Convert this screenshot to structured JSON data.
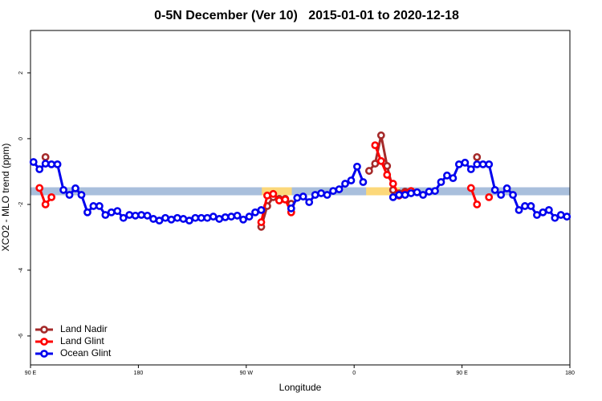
{
  "chart_data": {
    "type": "line",
    "title": "0-5N December (Ver 10)   2015-01-01 to 2020-12-18",
    "xlabel": "Longitude",
    "ylabel": "XCO2 - MLO trend (ppm)",
    "xlim": [
      90,
      540
    ],
    "ylim": [
      -6.88,
      3.29
    ],
    "xticks": [
      {
        "value": 90,
        "label": "90 E"
      },
      {
        "value": 180,
        "label": "180"
      },
      {
        "value": 270,
        "label": "90 W"
      },
      {
        "value": 360,
        "label": "0"
      },
      {
        "value": 450,
        "label": "90 E"
      },
      {
        "value": 540,
        "label": "180"
      }
    ],
    "yticks": [
      -6,
      -4,
      -2,
      0,
      2
    ],
    "legend": "bottomleft",
    "band": {
      "y": -1.6,
      "color": "#a9bfdc",
      "highlight_color": "#fcd87a",
      "highlights": [
        [
          283,
          308
        ],
        [
          370,
          398
        ]
      ]
    },
    "series": [
      {
        "name": "Land Nadir",
        "color": "#a52a2a",
        "x": [
          102.5,
          107.5,
          282.5,
          287.5,
          292.5,
          297.5,
          302.5,
          307.5,
          312.5,
          372.5,
          377.5,
          382.5,
          387.5,
          392.5,
          397.5,
          402.5,
          407.5,
          462.5
        ],
        "values": [
          -0.56,
          null,
          -2.68,
          -2.05,
          -1.78,
          -1.83,
          -1.83,
          -1.98,
          null,
          -0.98,
          -0.76,
          0.1,
          -0.83,
          -1.56,
          -1.66,
          -1.61,
          null,
          -0.56
        ]
      },
      {
        "name": "Land Glint",
        "color": "#ff0000",
        "x": [
          97.5,
          102.5,
          107.5,
          112.5,
          282.5,
          287.5,
          292.5,
          297.5,
          302.5,
          307.5,
          312.5,
          377.5,
          382.5,
          387.5,
          392.5,
          397.5,
          402.5,
          407.5,
          412.5,
          457.5,
          462.5,
          467.5,
          472.5
        ],
        "values": [
          -1.5,
          -2.0,
          -1.78,
          null,
          -2.54,
          -1.73,
          -1.68,
          -1.88,
          -1.85,
          -2.24,
          null,
          -0.2,
          -0.68,
          -1.1,
          -1.37,
          -1.73,
          -1.66,
          -1.59,
          null,
          -1.5,
          -2.0,
          null,
          -1.78
        ]
      },
      {
        "name": "Ocean Glint",
        "color": "#0000ee",
        "x": [
          92.5,
          97.5,
          102.5,
          107.5,
          112.5,
          117.5,
          122.5,
          127.5,
          132.5,
          137.5,
          142.5,
          147.5,
          152.5,
          157.5,
          162.5,
          167.5,
          172.5,
          177.5,
          182.5,
          187.5,
          192.5,
          197.5,
          202.5,
          207.5,
          212.5,
          217.5,
          222.5,
          227.5,
          232.5,
          237.5,
          242.5,
          247.5,
          252.5,
          257.5,
          262.5,
          267.5,
          272.5,
          277.5,
          282.5,
          287.5,
          292.5,
          297.5,
          302.5,
          307.5,
          312.5,
          317.5,
          322.5,
          327.5,
          332.5,
          337.5,
          342.5,
          347.5,
          352.5,
          357.5,
          362.5,
          367.5,
          372.5,
          377.5,
          382.5,
          387.5,
          392.5,
          397.5,
          402.5,
          407.5,
          412.5,
          417.5,
          422.5,
          427.5,
          432.5,
          437.5,
          442.5,
          447.5,
          452.5,
          457.5,
          462.5,
          467.5,
          472.5,
          477.5,
          482.5,
          487.5,
          492.5,
          497.5,
          502.5,
          507.5,
          512.5,
          517.5,
          522.5,
          527.5,
          532.5,
          537.5
        ],
        "values": [
          -0.71,
          -0.93,
          -0.76,
          -0.78,
          -0.78,
          -1.56,
          -1.71,
          -1.51,
          -1.71,
          -2.24,
          -2.05,
          -2.05,
          -2.32,
          -2.24,
          -2.2,
          -2.41,
          -2.32,
          -2.34,
          -2.32,
          -2.34,
          -2.44,
          -2.49,
          -2.41,
          -2.46,
          -2.41,
          -2.44,
          -2.49,
          -2.41,
          -2.41,
          -2.41,
          -2.37,
          -2.44,
          -2.39,
          -2.37,
          -2.34,
          -2.46,
          -2.37,
          -2.24,
          -2.17,
          null,
          null,
          null,
          null,
          -2.12,
          -1.8,
          -1.76,
          -1.93,
          -1.71,
          -1.66,
          -1.71,
          -1.59,
          -1.54,
          -1.37,
          -1.27,
          -0.85,
          -1.32,
          null,
          null,
          null,
          null,
          -1.78,
          -1.71,
          -1.71,
          -1.66,
          -1.63,
          -1.71,
          -1.61,
          -1.59,
          -1.32,
          -1.12,
          -1.2,
          -0.78,
          -0.73,
          -0.93,
          -0.78,
          -0.78,
          -0.78,
          -1.56,
          -1.71,
          -1.51,
          -1.71,
          -2.17,
          -2.05,
          -2.05,
          -2.32,
          -2.24,
          -2.17,
          -2.41,
          -2.32,
          -2.37
        ]
      }
    ]
  }
}
